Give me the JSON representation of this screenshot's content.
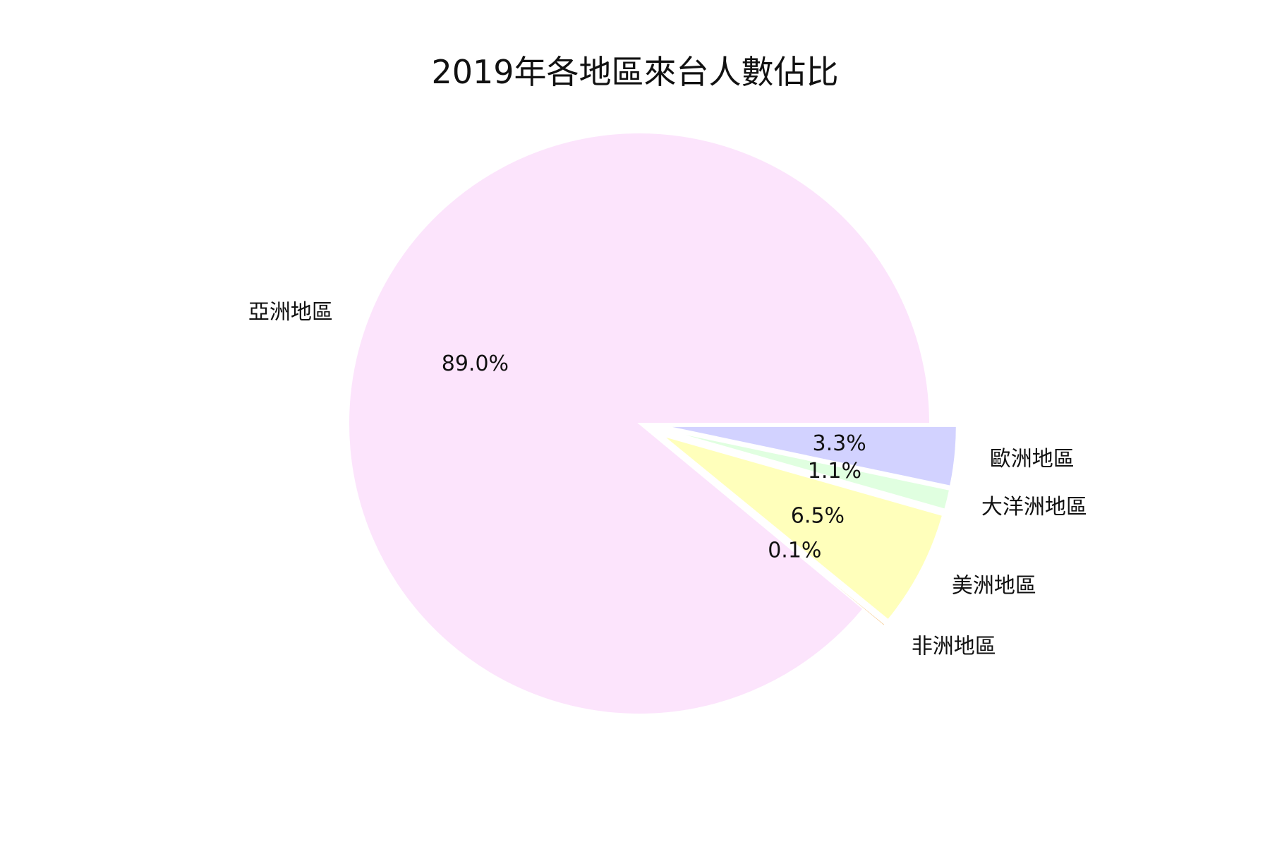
{
  "chart_data": {
    "type": "pie",
    "title": "2019年各地區來台人數佔比",
    "slices": [
      {
        "label": "歐洲地區",
        "value": 3.3,
        "percent_label": "3.3%",
        "color": "#d2d2ff",
        "exploded": true
      },
      {
        "label": "大洋洲地區",
        "value": 1.1,
        "percent_label": "1.1%",
        "color": "#e0ffe0",
        "exploded": true
      },
      {
        "label": "美洲地區",
        "value": 6.5,
        "percent_label": "6.5%",
        "color": "#ffffbb",
        "exploded": true
      },
      {
        "label": "非洲地區",
        "value": 0.1,
        "percent_label": "0.1%",
        "color": "#f4c07a",
        "exploded": true
      },
      {
        "label": "亞洲地區",
        "value": 89.0,
        "percent_label": "89.0%",
        "color": "#fce4fc",
        "exploded": false
      }
    ],
    "start_angle_deg": 0,
    "direction": "clockwise",
    "legend": "none"
  }
}
